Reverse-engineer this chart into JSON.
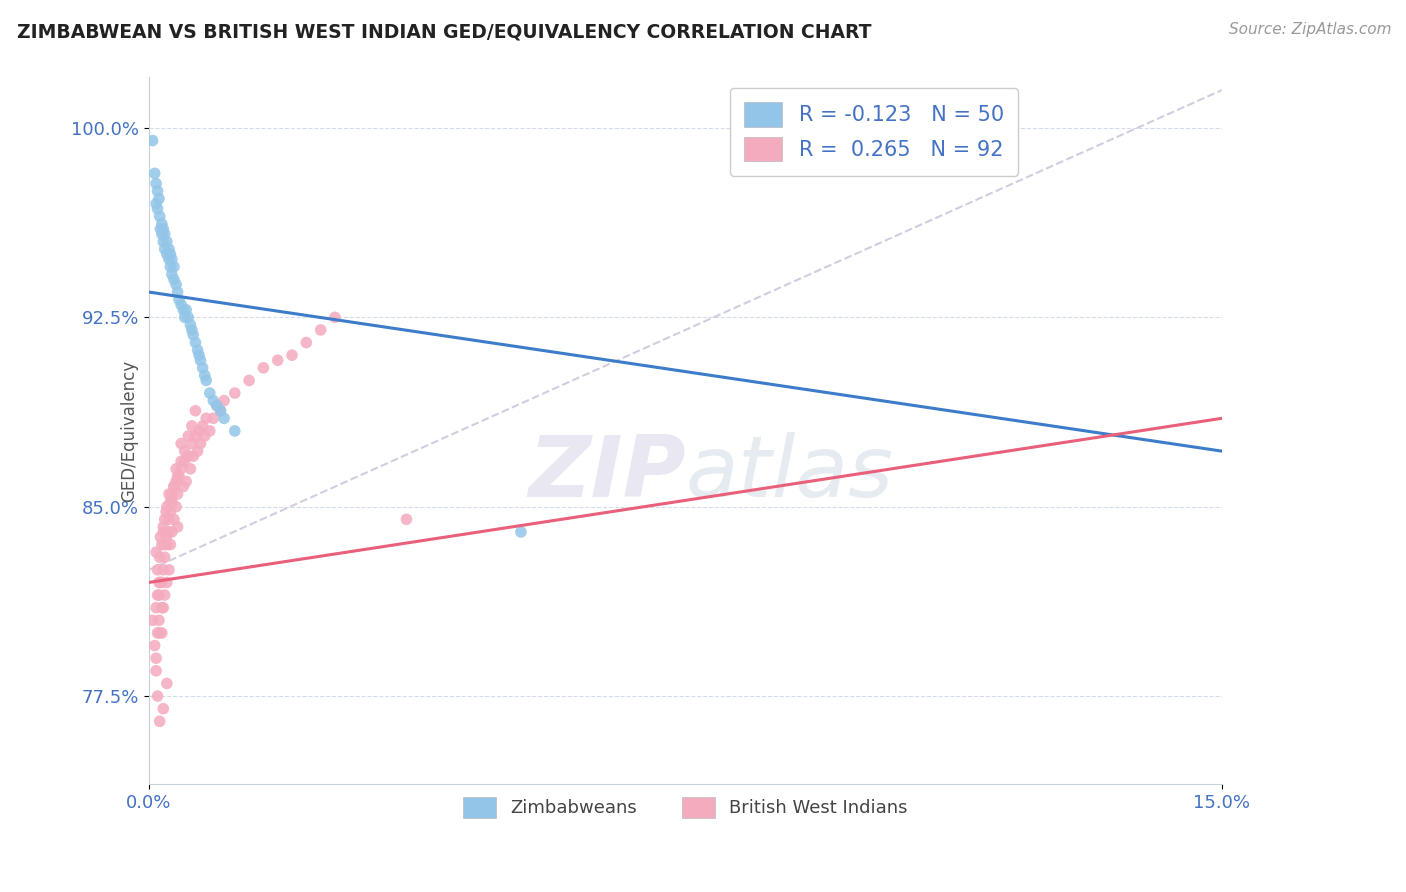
{
  "title": "ZIMBABWEAN VS BRITISH WEST INDIAN GED/EQUIVALENCY CORRELATION CHART",
  "source": "Source: ZipAtlas.com",
  "ylabel": "GED/Equivalency",
  "xmin": 0.0,
  "xmax": 15.0,
  "ymin": 74.0,
  "ymax": 102.0,
  "yticks": [
    77.5,
    85.0,
    92.5,
    100.0
  ],
  "ytick_labels": [
    "77.5%",
    "85.0%",
    "92.5%",
    "100.0%"
  ],
  "xticks": [
    0.0,
    15.0
  ],
  "xtick_labels": [
    "0.0%",
    "15.0%"
  ],
  "R_zimbabwean": -0.123,
  "N_zimbabwean": 50,
  "R_bwi": 0.265,
  "N_bwi": 92,
  "blue_color": "#92C5E8",
  "pink_color": "#F4ABBE",
  "trend_blue": "#3D7CC9",
  "trend_pink": "#E8607A",
  "dash_color": "#C8C0D8",
  "watermark_color": "#E0DCF0",
  "legend_label_zim": "Zimbabweans",
  "legend_label_bwi": "British West Indians",
  "blue_trend_x": [
    0.0,
    15.0
  ],
  "blue_trend_y": [
    93.5,
    87.2
  ],
  "pink_trend_x": [
    0.0,
    15.0
  ],
  "pink_trend_y": [
    82.0,
    88.5
  ],
  "dash_trend_x": [
    0.0,
    15.0
  ],
  "dash_trend_y": [
    82.5,
    101.5
  ],
  "zim_x": [
    0.05,
    0.08,
    0.1,
    0.12,
    0.12,
    0.14,
    0.15,
    0.16,
    0.18,
    0.18,
    0.2,
    0.2,
    0.22,
    0.22,
    0.25,
    0.25,
    0.28,
    0.28,
    0.3,
    0.3,
    0.32,
    0.32,
    0.35,
    0.35,
    0.38,
    0.4,
    0.42,
    0.45,
    0.48,
    0.5,
    0.52,
    0.55,
    0.58,
    0.6,
    0.62,
    0.65,
    0.68,
    0.7,
    0.72,
    0.75,
    0.78,
    0.8,
    0.85,
    0.9,
    0.95,
    1.0,
    1.05,
    1.2,
    0.1,
    5.2
  ],
  "zim_y": [
    99.5,
    98.2,
    97.8,
    97.5,
    96.8,
    97.2,
    96.5,
    96.0,
    95.8,
    96.2,
    95.5,
    96.0,
    95.2,
    95.8,
    95.0,
    95.5,
    94.8,
    95.2,
    94.5,
    95.0,
    94.2,
    94.8,
    94.0,
    94.5,
    93.8,
    93.5,
    93.2,
    93.0,
    92.8,
    92.5,
    92.8,
    92.5,
    92.2,
    92.0,
    91.8,
    91.5,
    91.2,
    91.0,
    90.8,
    90.5,
    90.2,
    90.0,
    89.5,
    89.2,
    89.0,
    88.8,
    88.5,
    88.0,
    97.0,
    84.0
  ],
  "bwi_x": [
    0.05,
    0.08,
    0.1,
    0.1,
    0.12,
    0.12,
    0.14,
    0.15,
    0.15,
    0.16,
    0.18,
    0.18,
    0.18,
    0.2,
    0.2,
    0.2,
    0.22,
    0.22,
    0.22,
    0.24,
    0.25,
    0.25,
    0.25,
    0.28,
    0.28,
    0.28,
    0.3,
    0.3,
    0.32,
    0.32,
    0.35,
    0.35,
    0.38,
    0.38,
    0.4,
    0.4,
    0.42,
    0.45,
    0.48,
    0.5,
    0.52,
    0.55,
    0.58,
    0.6,
    0.62,
    0.65,
    0.68,
    0.7,
    0.72,
    0.75,
    0.78,
    0.8,
    0.85,
    0.9,
    0.95,
    1.0,
    1.05,
    1.2,
    1.4,
    1.6,
    1.8,
    2.0,
    2.2,
    2.4,
    2.6,
    0.1,
    0.14,
    0.16,
    0.2,
    0.24,
    0.3,
    0.35,
    0.4,
    0.45,
    0.5,
    0.55,
    0.6,
    0.65,
    3.6,
    0.1,
    0.12,
    0.15,
    0.2,
    0.25,
    0.12,
    0.14,
    0.18,
    0.22,
    0.28,
    0.32,
    0.38,
    0.45
  ],
  "bwi_y": [
    80.5,
    79.5,
    81.0,
    78.5,
    80.0,
    82.5,
    81.5,
    83.0,
    80.0,
    82.0,
    83.5,
    81.0,
    80.0,
    84.0,
    82.5,
    81.0,
    84.5,
    83.0,
    81.5,
    83.8,
    85.0,
    83.5,
    82.0,
    85.5,
    84.0,
    82.5,
    84.8,
    83.5,
    85.2,
    84.0,
    85.8,
    84.5,
    86.0,
    85.0,
    85.5,
    84.2,
    86.2,
    86.5,
    85.8,
    86.8,
    86.0,
    87.0,
    86.5,
    87.5,
    87.0,
    87.8,
    87.2,
    88.0,
    87.5,
    88.2,
    87.8,
    88.5,
    88.0,
    88.5,
    89.0,
    88.8,
    89.2,
    89.5,
    90.0,
    90.5,
    90.8,
    91.0,
    91.5,
    92.0,
    92.5,
    83.2,
    82.0,
    83.8,
    84.2,
    84.8,
    85.2,
    85.8,
    86.2,
    86.8,
    87.2,
    87.8,
    88.2,
    88.8,
    84.5,
    79.0,
    77.5,
    76.5,
    77.0,
    78.0,
    81.5,
    80.5,
    82.0,
    83.5,
    84.5,
    85.5,
    86.5,
    87.5
  ]
}
